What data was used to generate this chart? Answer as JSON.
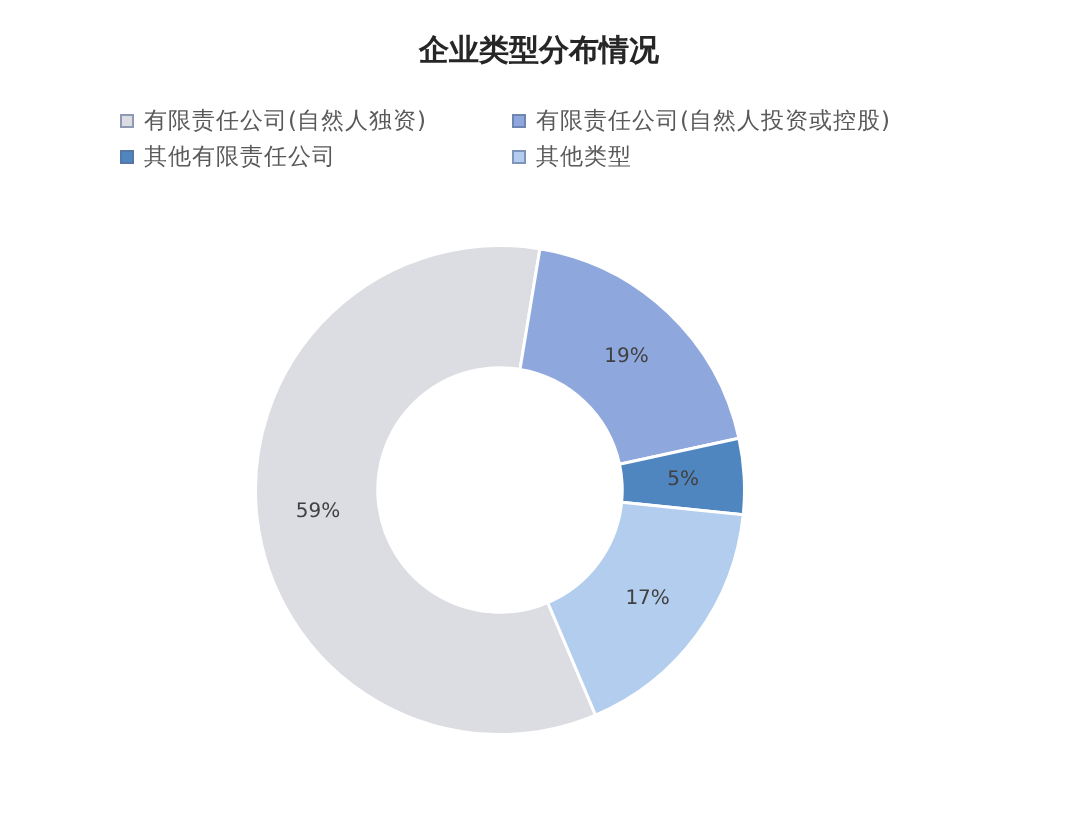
{
  "chart_data": {
    "type": "donut",
    "title": "企业类型分布情况",
    "categories": [
      "有限责任公司(自然人独资)",
      "有限责任公司(自然人投资或控股)",
      "其他有限责任公司",
      "其他类型"
    ],
    "values": [
      59,
      19,
      5,
      17
    ],
    "colors": [
      "#dcdde2",
      "#8ea7dc",
      "#4f86bf",
      "#b3cdee"
    ],
    "value_labels": [
      "59%",
      "19%",
      "5%",
      "17%"
    ],
    "legend": "top"
  }
}
